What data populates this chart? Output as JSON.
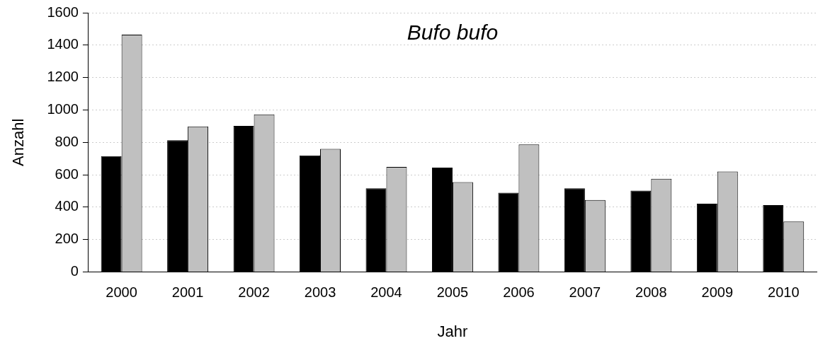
{
  "chart_data": {
    "type": "bar",
    "title": "Bufo bufo",
    "xlabel": "Jahr",
    "ylabel": "Anzahl",
    "categories": [
      "2000",
      "2001",
      "2002",
      "2003",
      "2004",
      "2005",
      "2006",
      "2007",
      "2008",
      "2009",
      "2010"
    ],
    "series": [
      {
        "color": "#000000",
        "values": [
          715,
          813,
          902,
          720,
          516,
          644,
          489,
          516,
          502,
          422,
          413
        ]
      },
      {
        "color": "#c0c0c0",
        "values": [
          1465,
          898,
          973,
          760,
          649,
          555,
          787,
          444,
          575,
          620,
          311
        ]
      }
    ],
    "ylim": [
      0,
      1600
    ],
    "yticks": [
      0,
      200,
      400,
      600,
      800,
      1000,
      1200,
      1400,
      1600
    ],
    "grid": "y",
    "legend": false
  }
}
